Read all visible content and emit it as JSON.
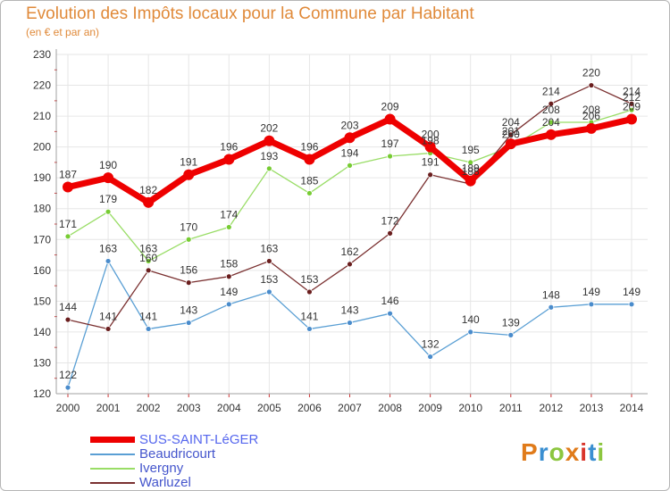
{
  "header": {
    "title": "Evolution des Impôts locaux pour la Commune par Habitant",
    "subtitle": "(en € et par an)"
  },
  "logo": {
    "text": "Proxiti",
    "colors": [
      "#e07b1a",
      "#3a8fd1",
      "#8cc63f",
      "#e07b1a",
      "#d9352b",
      "#3a8fd1",
      "#8cc63f"
    ]
  },
  "colors": {
    "title": "#e08a3a",
    "axis": "#a0a0a0",
    "grid": "#e6e6e6",
    "tick_marks": "#cc3333"
  },
  "chart_data": {
    "type": "line",
    "title": "Evolution des Impôts locaux pour la Commune par Habitant",
    "subtitle": "(en € et par an)",
    "xlabel": "",
    "ylabel": "",
    "ylim": [
      120,
      230
    ],
    "yticks": [
      120,
      130,
      140,
      150,
      160,
      170,
      180,
      190,
      200,
      210,
      220,
      230
    ],
    "x": [
      "2000",
      "2001",
      "2002",
      "2003",
      "2004",
      "2005",
      "2006",
      "2007",
      "2008",
      "2009",
      "2010",
      "2011",
      "2012",
      "2013",
      "2014"
    ],
    "grid": true,
    "legend_position": "bottom-left",
    "series": [
      {
        "name": "SUS-SAINT-LéGER",
        "color": "#ee0000",
        "marker": "#ee0000",
        "width": 7,
        "values": [
          187,
          190,
          182,
          191,
          196,
          202,
          196,
          203,
          209,
          200,
          189,
          201,
          204,
          206,
          209
        ]
      },
      {
        "name": "Beaudricourt",
        "color": "#5a9fd4",
        "marker": "#4a8ccc",
        "width": 1.3,
        "values": [
          122,
          163,
          141,
          143,
          149,
          153,
          141,
          143,
          146,
          132,
          140,
          139,
          148,
          149,
          149
        ]
      },
      {
        "name": "Ivergny",
        "color": "#99dd66",
        "marker": "#77cc33",
        "width": 1.3,
        "values": [
          171,
          179,
          163,
          170,
          174,
          193,
          185,
          194,
          197,
          198,
          195,
          200,
          208,
          208,
          212
        ]
      },
      {
        "name": "Warluzel",
        "color": "#7a3030",
        "marker": "#6a1e1e",
        "width": 1.3,
        "values": [
          144,
          141,
          160,
          156,
          158,
          163,
          153,
          162,
          172,
          191,
          188,
          204,
          214,
          220,
          214
        ]
      }
    ]
  }
}
